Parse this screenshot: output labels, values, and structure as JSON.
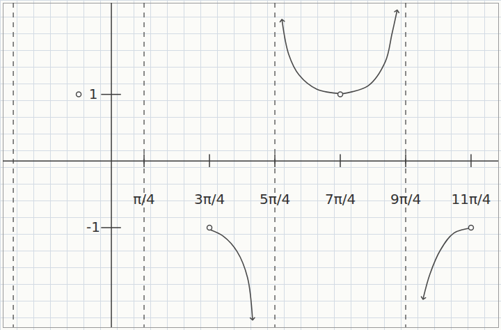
{
  "chart_data": {
    "type": "line",
    "color": "#4a4a4a",
    "xlim": [
      -2.6,
      9.3
    ],
    "ylim": [
      -2.5,
      2.37
    ],
    "xticks": [
      {
        "value": 0.785,
        "label": "π/4"
      },
      {
        "value": 2.356,
        "label": "3π/4"
      },
      {
        "value": 3.927,
        "label": "5π/4"
      },
      {
        "value": 5.498,
        "label": "7π/4"
      },
      {
        "value": 7.069,
        "label": "9π/4"
      },
      {
        "value": 8.639,
        "label": "11π/4"
      }
    ],
    "yticks": [
      -1,
      1
    ],
    "series": [
      {
        "type": "line",
        "marker": "arrow",
        "line_style": "solid",
        "x": [
          2.36,
          2.69,
          3.02,
          3.27,
          3.39
        ],
        "values": [
          -1.03,
          -1.13,
          -1.36,
          -1.75,
          -2.37
        ]
      },
      {
        "type": "line",
        "marker": "arrow",
        "line_style": "solid",
        "x": [
          5.55,
          4.93,
          4.51,
          4.26,
          4.1
        ],
        "values": [
          1.01,
          1.08,
          1.29,
          1.6,
          2.11
        ]
      },
      {
        "type": "line",
        "marker": "arrow",
        "line_style": "solid",
        "x": [
          5.55,
          6.17,
          6.58,
          6.74,
          6.86
        ],
        "values": [
          1.01,
          1.13,
          1.49,
          1.91,
          2.25
        ]
      },
      {
        "type": "line",
        "marker": "arrow",
        "line_style": "solid",
        "x": [
          8.69,
          8.23,
          7.9,
          7.65,
          7.49
        ],
        "values": [
          -1.0,
          -1.08,
          -1.34,
          -1.7,
          -2.06
        ]
      },
      {
        "type": "scatter",
        "marker": "circle",
        "x": [
          -0.785,
          2.356,
          5.498,
          8.639
        ],
        "values": [
          1,
          -1,
          1,
          -1
        ]
      },
      {
        "type": "vline",
        "line_style": "dashed",
        "x": [
          -2.356,
          0.785,
          3.927,
          7.069
        ]
      }
    ]
  }
}
